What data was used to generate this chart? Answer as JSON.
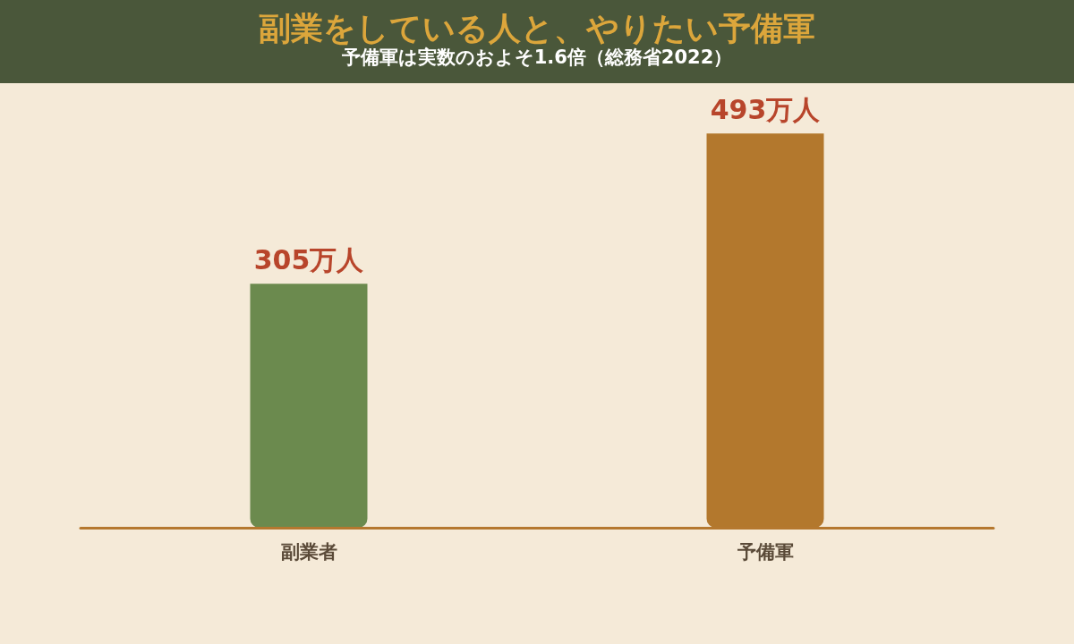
{
  "chart_data": {
    "type": "bar",
    "title": "副業をしている人と、やりたい予備軍",
    "subtitle": "予備軍は実数のおよそ1.6倍（総務省2022）",
    "categories": [
      "副業者",
      "予備軍"
    ],
    "values": [
      305,
      493
    ],
    "colors": [
      "#6b8a4e",
      "#b3782d"
    ],
    "value_labels": [
      "305万人",
      "493万人"
    ]
  }
}
